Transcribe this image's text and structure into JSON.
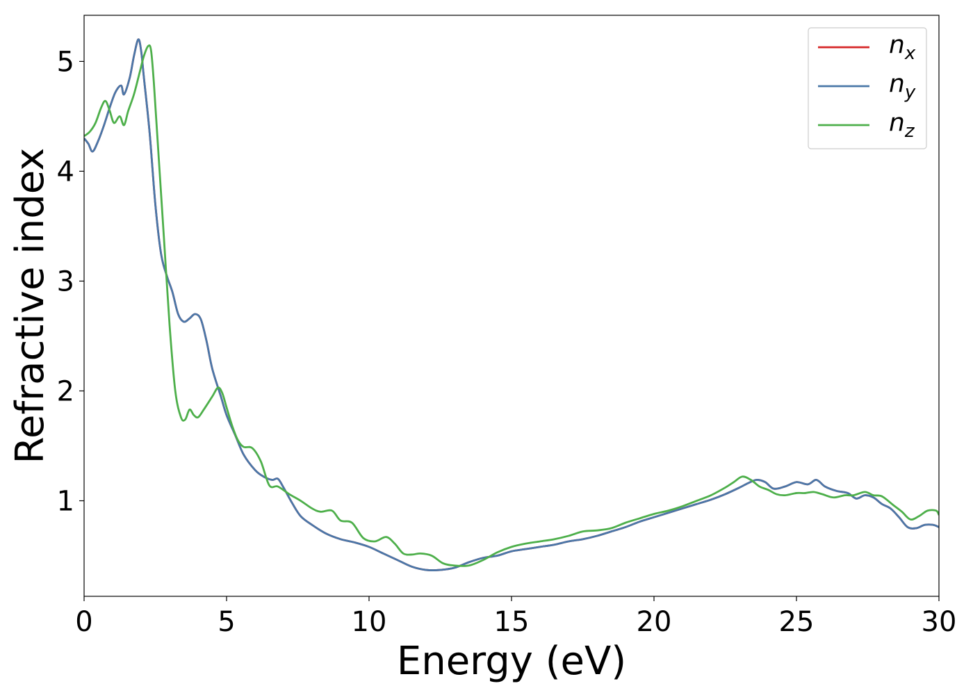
{
  "chart_data": {
    "type": "line",
    "title": "",
    "xlabel": "Energy (eV)",
    "ylabel": "Refractive index",
    "xlim": [
      0,
      30
    ],
    "ylim": [
      0.13,
      5.42
    ],
    "xticks": [
      0,
      5,
      10,
      15,
      20,
      25,
      30
    ],
    "yticks": [
      1,
      2,
      3,
      4,
      5
    ],
    "grid": false,
    "legend_position": "top-right",
    "series": [
      {
        "name": "n_x",
        "legend_base": "n",
        "legend_sub": "x",
        "color": "#d62728",
        "x": [
          0,
          0.15,
          0.3,
          0.5,
          0.7,
          0.9,
          1.1,
          1.3,
          1.4,
          1.6,
          1.75,
          1.9,
          2.0,
          2.1,
          2.3,
          2.5,
          2.7,
          2.9,
          3.1,
          3.3,
          3.5,
          3.7,
          3.9,
          4.1,
          4.3,
          4.5,
          4.8,
          5.0,
          5.3,
          5.6,
          6.0,
          6.3,
          6.6,
          6.8,
          7.0,
          7.3,
          7.6,
          8.0,
          8.5,
          9.0,
          9.5,
          10.0,
          10.5,
          11.0,
          11.5,
          12.0,
          12.5,
          13.0,
          13.5,
          14.0,
          14.5,
          15.0,
          15.5,
          16.0,
          16.5,
          17.0,
          17.5,
          18.0,
          18.5,
          19.0,
          19.5,
          20.0,
          20.5,
          21.0,
          21.5,
          22.0,
          22.5,
          23.0,
          23.3,
          23.6,
          23.9,
          24.2,
          24.6,
          25.0,
          25.4,
          25.7,
          26.0,
          26.4,
          26.8,
          27.1,
          27.4,
          27.7,
          28.0,
          28.3,
          28.6,
          28.9,
          29.2,
          29.5,
          29.8,
          30.0
        ],
        "values": [
          4.3,
          4.25,
          4.18,
          4.28,
          4.42,
          4.58,
          4.72,
          4.78,
          4.7,
          4.85,
          5.05,
          5.2,
          5.1,
          4.85,
          4.35,
          3.7,
          3.25,
          3.05,
          2.9,
          2.7,
          2.63,
          2.66,
          2.7,
          2.65,
          2.45,
          2.2,
          1.95,
          1.78,
          1.6,
          1.42,
          1.28,
          1.22,
          1.19,
          1.2,
          1.12,
          0.98,
          0.86,
          0.78,
          0.7,
          0.65,
          0.62,
          0.58,
          0.52,
          0.46,
          0.4,
          0.37,
          0.37,
          0.39,
          0.44,
          0.48,
          0.5,
          0.54,
          0.56,
          0.58,
          0.6,
          0.63,
          0.65,
          0.68,
          0.72,
          0.76,
          0.81,
          0.85,
          0.89,
          0.93,
          0.97,
          1.01,
          1.06,
          1.12,
          1.16,
          1.19,
          1.17,
          1.11,
          1.13,
          1.17,
          1.15,
          1.19,
          1.13,
          1.09,
          1.07,
          1.02,
          1.05,
          1.03,
          0.97,
          0.93,
          0.85,
          0.76,
          0.75,
          0.78,
          0.78,
          0.76
        ]
      },
      {
        "name": "n_y",
        "legend_base": "n",
        "legend_sub": "y",
        "color": "#4a77a8",
        "x": [
          0,
          0.15,
          0.3,
          0.5,
          0.7,
          0.9,
          1.1,
          1.3,
          1.4,
          1.6,
          1.75,
          1.9,
          2.0,
          2.1,
          2.3,
          2.5,
          2.7,
          2.9,
          3.1,
          3.3,
          3.5,
          3.7,
          3.9,
          4.1,
          4.3,
          4.5,
          4.8,
          5.0,
          5.3,
          5.6,
          6.0,
          6.3,
          6.6,
          6.8,
          7.0,
          7.3,
          7.6,
          8.0,
          8.5,
          9.0,
          9.5,
          10.0,
          10.5,
          11.0,
          11.5,
          12.0,
          12.5,
          13.0,
          13.5,
          14.0,
          14.5,
          15.0,
          15.5,
          16.0,
          16.5,
          17.0,
          17.5,
          18.0,
          18.5,
          19.0,
          19.5,
          20.0,
          20.5,
          21.0,
          21.5,
          22.0,
          22.5,
          23.0,
          23.3,
          23.6,
          23.9,
          24.2,
          24.6,
          25.0,
          25.4,
          25.7,
          26.0,
          26.4,
          26.8,
          27.1,
          27.4,
          27.7,
          28.0,
          28.3,
          28.6,
          28.9,
          29.2,
          29.5,
          29.8,
          30.0
        ],
        "values": [
          4.3,
          4.25,
          4.18,
          4.28,
          4.42,
          4.58,
          4.72,
          4.78,
          4.7,
          4.85,
          5.05,
          5.2,
          5.1,
          4.85,
          4.35,
          3.7,
          3.25,
          3.05,
          2.9,
          2.7,
          2.63,
          2.66,
          2.7,
          2.65,
          2.45,
          2.2,
          1.95,
          1.78,
          1.6,
          1.42,
          1.28,
          1.22,
          1.19,
          1.2,
          1.12,
          0.98,
          0.86,
          0.78,
          0.7,
          0.65,
          0.62,
          0.58,
          0.52,
          0.46,
          0.4,
          0.37,
          0.37,
          0.39,
          0.44,
          0.48,
          0.5,
          0.54,
          0.56,
          0.58,
          0.6,
          0.63,
          0.65,
          0.68,
          0.72,
          0.76,
          0.81,
          0.85,
          0.89,
          0.93,
          0.97,
          1.01,
          1.06,
          1.12,
          1.16,
          1.19,
          1.17,
          1.11,
          1.13,
          1.17,
          1.15,
          1.19,
          1.13,
          1.09,
          1.07,
          1.02,
          1.05,
          1.03,
          0.97,
          0.93,
          0.85,
          0.76,
          0.75,
          0.78,
          0.78,
          0.76
        ]
      },
      {
        "name": "n_z",
        "legend_base": "n",
        "legend_sub": "z",
        "color": "#4daf4a",
        "x": [
          0,
          0.2,
          0.4,
          0.6,
          0.75,
          0.9,
          1.05,
          1.25,
          1.4,
          1.55,
          1.75,
          1.95,
          2.1,
          2.25,
          2.35,
          2.45,
          2.6,
          2.8,
          3.0,
          3.2,
          3.4,
          3.55,
          3.7,
          3.85,
          4.0,
          4.2,
          4.5,
          4.7,
          4.85,
          5.0,
          5.2,
          5.4,
          5.6,
          5.9,
          6.2,
          6.5,
          6.8,
          7.2,
          7.6,
          8.0,
          8.3,
          8.7,
          9.0,
          9.4,
          9.8,
          10.2,
          10.6,
          10.9,
          11.2,
          11.5,
          11.8,
          12.2,
          12.6,
          13.0,
          13.5,
          14.0,
          14.5,
          15.0,
          15.5,
          16.0,
          16.5,
          17.0,
          17.5,
          18.0,
          18.5,
          19.0,
          19.5,
          20.0,
          20.5,
          21.0,
          21.5,
          22.0,
          22.5,
          22.8,
          23.1,
          23.4,
          23.7,
          24.0,
          24.3,
          24.6,
          25.0,
          25.3,
          25.6,
          25.9,
          26.3,
          26.7,
          27.0,
          27.4,
          27.7,
          28.0,
          28.4,
          28.7,
          29.0,
          29.3,
          29.6,
          29.9,
          30.0
        ],
        "values": [
          4.32,
          4.36,
          4.44,
          4.58,
          4.64,
          4.55,
          4.44,
          4.5,
          4.42,
          4.55,
          4.7,
          4.9,
          5.05,
          5.14,
          5.1,
          4.8,
          4.2,
          3.4,
          2.6,
          2.0,
          1.76,
          1.74,
          1.83,
          1.78,
          1.76,
          1.83,
          1.95,
          2.03,
          1.98,
          1.85,
          1.68,
          1.55,
          1.49,
          1.48,
          1.36,
          1.14,
          1.13,
          1.06,
          1.0,
          0.93,
          0.9,
          0.91,
          0.82,
          0.8,
          0.66,
          0.63,
          0.67,
          0.61,
          0.52,
          0.51,
          0.52,
          0.5,
          0.43,
          0.41,
          0.41,
          0.46,
          0.53,
          0.58,
          0.61,
          0.63,
          0.65,
          0.68,
          0.72,
          0.73,
          0.75,
          0.8,
          0.84,
          0.88,
          0.91,
          0.95,
          1.0,
          1.05,
          1.12,
          1.17,
          1.22,
          1.19,
          1.13,
          1.1,
          1.06,
          1.05,
          1.07,
          1.07,
          1.08,
          1.06,
          1.03,
          1.05,
          1.05,
          1.08,
          1.05,
          1.04,
          0.96,
          0.9,
          0.83,
          0.86,
          0.91,
          0.91,
          0.87
        ]
      }
    ]
  }
}
